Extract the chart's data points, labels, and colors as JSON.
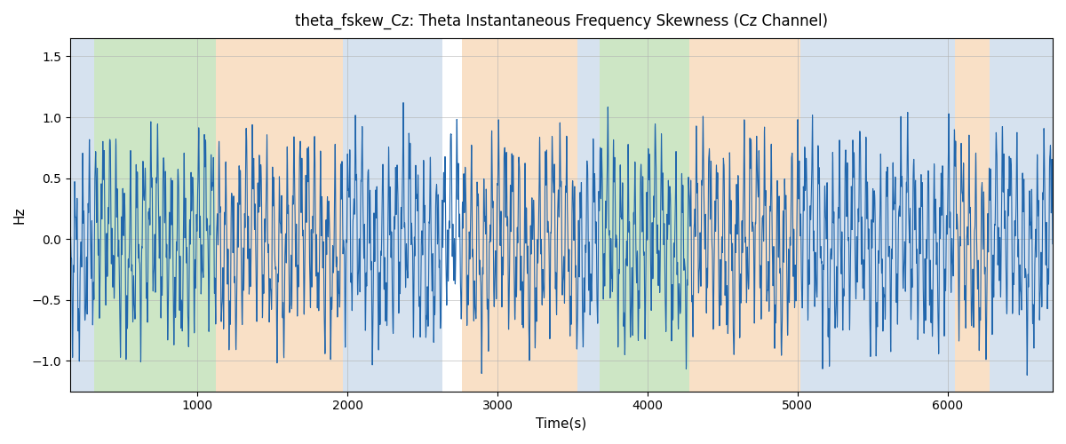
{
  "title": "theta_fskew_Cz: Theta Instantaneous Frequency Skewness (Cz Channel)",
  "xlabel": "Time(s)",
  "ylabel": "Hz",
  "xlim": [
    150,
    6700
  ],
  "ylim": [
    -1.25,
    1.65
  ],
  "figsize": [
    12.0,
    5.0
  ],
  "dpi": 100,
  "line_color": "#2166ac",
  "line_width": 0.8,
  "background_color": "#ffffff",
  "grid_color": "#b0b0b0",
  "bands": [
    {
      "xstart": 150,
      "xend": 310,
      "color": "#aec6e0",
      "alpha": 0.5
    },
    {
      "xstart": 310,
      "xend": 1120,
      "color": "#90c880",
      "alpha": 0.45
    },
    {
      "xstart": 1120,
      "xend": 1970,
      "color": "#f5c897",
      "alpha": 0.55
    },
    {
      "xstart": 1970,
      "xend": 2630,
      "color": "#aec6e0",
      "alpha": 0.5
    },
    {
      "xstart": 2630,
      "xend": 2760,
      "color": "#ffffff",
      "alpha": 0.0
    },
    {
      "xstart": 2760,
      "xend": 3530,
      "color": "#f5c897",
      "alpha": 0.55
    },
    {
      "xstart": 3530,
      "xend": 3680,
      "color": "#aec6e0",
      "alpha": 0.5
    },
    {
      "xstart": 3680,
      "xend": 4280,
      "color": "#90c880",
      "alpha": 0.45
    },
    {
      "xstart": 4280,
      "xend": 4420,
      "color": "#f5c897",
      "alpha": 0.55
    },
    {
      "xstart": 4420,
      "xend": 5020,
      "color": "#f5c897",
      "alpha": 0.55
    },
    {
      "xstart": 5020,
      "xend": 6050,
      "color": "#aec6e0",
      "alpha": 0.5
    },
    {
      "xstart": 6050,
      "xend": 6280,
      "color": "#f5c897",
      "alpha": 0.55
    },
    {
      "xstart": 6280,
      "xend": 6700,
      "color": "#aec6e0",
      "alpha": 0.5
    }
  ],
  "n_points": 6500
}
